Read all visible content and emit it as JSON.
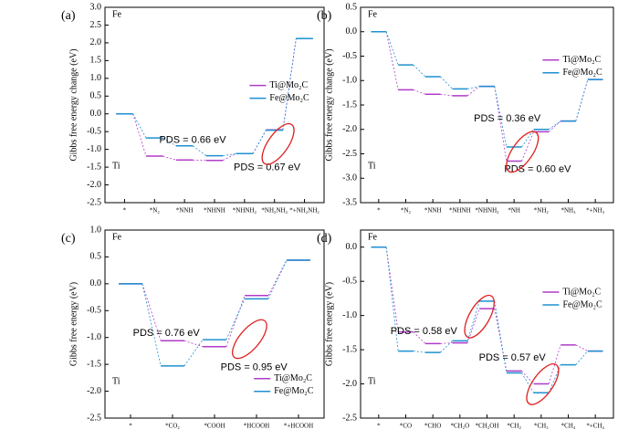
{
  "chart_data": [
    {
      "type": "step",
      "panel_label": "(a)",
      "ylabel": "Gibbs free energy change (eV)",
      "structure_labels": [
        "Fe",
        "Ti"
      ],
      "categories": [
        "*",
        "*N₂",
        "*NNH",
        "*NHNH",
        "*NHNH₂",
        "*NH₂NH₂",
        "*+NH₂NH₂"
      ],
      "series": [
        {
          "name": "Ti@Mo₂C",
          "color": "#b03cc8",
          "values": [
            0,
            -1.19,
            -1.3,
            -1.31,
            -1.12,
            -0.45,
            2.12
          ]
        },
        {
          "name": "Fe@Mo₂C",
          "color": "#1e90d0",
          "values": [
            0,
            -0.68,
            -0.9,
            -1.18,
            -1.12,
            -0.46,
            2.12
          ]
        }
      ],
      "ylim": [
        -2.5,
        3.0
      ],
      "yticks": [
        -2.5,
        {
          "value": -2,
          "label": "-2.0"
        },
        -1.5,
        {
          "value": -1,
          "label": "-1.0"
        },
        -0.5,
        {
          "value": 0,
          "label": "0.0"
        },
        0.5,
        {
          "value": 1,
          "label": "1.0"
        },
        1.5,
        {
          "value": 2,
          "label": "2.0"
        },
        2.5,
        {
          "value": 3,
          "label": "3.0"
        }
      ],
      "annotations": [
        {
          "text": "PDS = 0.66 eV",
          "color": "#1e90d0"
        },
        {
          "text": "PDS = 0.67 eV",
          "color": "#b03cc8"
        }
      ]
    },
    {
      "type": "step",
      "panel_label": "(b)",
      "ylabel": "Gibbs free energy change (eV)",
      "structure_labels": [
        "Fe",
        "Ti"
      ],
      "categories": [
        "*",
        "*N₂",
        "*NNH",
        "*NHNH",
        "*NHNH₂",
        "*NH",
        "*NH₂",
        "*NH₃",
        "*+NH₃"
      ],
      "series": [
        {
          "name": "Ti@Mo₂C",
          "color": "#b03cc8",
          "values": [
            0,
            -1.19,
            -1.28,
            -1.31,
            -1.12,
            -2.65,
            -2.05,
            -1.83,
            -0.98
          ]
        },
        {
          "name": "Fe@Mo₂C",
          "color": "#1e90d0",
          "values": [
            0,
            -0.68,
            -0.92,
            -1.17,
            -1.12,
            -2.36,
            -2.0,
            -1.83,
            -0.98
          ]
        }
      ],
      "ylim": [
        -3.5,
        0.5
      ],
      "yticks": [
        -3.5,
        {
          "value": -3,
          "label": "-3.0"
        },
        -2.5,
        {
          "value": -2,
          "label": "-2.0"
        },
        -1.5,
        {
          "value": -1,
          "label": "-1.0"
        },
        -0.5,
        {
          "value": 0,
          "label": "0.0"
        },
        0.5
      ],
      "annotations": [
        {
          "text": "PDS = 0.36 eV",
          "color": "#1e90d0"
        },
        {
          "text": "PDS = 0.60 eV",
          "color": "#b03cc8"
        }
      ]
    },
    {
      "type": "step",
      "panel_label": "(c)",
      "ylabel": "Gibbs free energy (eV)",
      "structure_labels": [
        "Fe",
        "Ti"
      ],
      "categories": [
        "*",
        "*CO₂",
        "*COOH",
        "*HCOOH",
        "*+HCOOH"
      ],
      "series": [
        {
          "name": "Ti@Mo₂C",
          "color": "#b03cc8",
          "values": [
            0,
            -1.06,
            -1.17,
            -0.22,
            0.44
          ]
        },
        {
          "name": "Fe@Mo₂C",
          "color": "#1e90d0",
          "values": [
            0,
            -1.53,
            -1.04,
            -0.28,
            0.44
          ]
        }
      ],
      "ylim": [
        -2.5,
        1.0
      ],
      "yticks": [
        -2.5,
        {
          "value": -2,
          "label": "-2.0"
        },
        -1.5,
        {
          "value": -1,
          "label": "-1.0"
        },
        -0.5,
        {
          "value": 0,
          "label": "0.0"
        },
        0.5,
        {
          "value": 1,
          "label": "1.0"
        }
      ],
      "annotations": [
        {
          "text": "PDS = 0.76 eV",
          "color": "#1e90d0"
        },
        {
          "text": "PDS = 0.95 eV",
          "color": "#b03cc8"
        }
      ]
    },
    {
      "type": "step",
      "panel_label": "(d)",
      "ylabel": "Gibbs free energy (eV)",
      "structure_labels": [
        "Fe",
        "Ti"
      ],
      "categories": [
        "*",
        "*CO",
        "*CHO",
        "*CH₂O",
        "*CH₂OH",
        "*CH₂",
        "*CH₃",
        "*CH₄",
        "*+CH₄"
      ],
      "series": [
        {
          "name": "Ti@Mo₂C",
          "color": "#b03cc8",
          "values": [
            0,
            -1.24,
            -1.41,
            -1.4,
            -0.9,
            -1.81,
            -2.0,
            -1.43,
            -1.52
          ]
        },
        {
          "name": "Fe@Mo₂C",
          "color": "#1e90d0",
          "values": [
            0,
            -1.52,
            -1.54,
            -1.37,
            -0.79,
            -1.84,
            -2.13,
            -1.72,
            -1.52
          ]
        }
      ],
      "ylim": [
        -2.5,
        0.25
      ],
      "yticks": [
        -2.5,
        {
          "value": -2,
          "label": "-2.0"
        },
        -1.5,
        {
          "value": -1,
          "label": "-1.0"
        },
        -0.5,
        {
          "value": 0,
          "label": "0.0"
        }
      ],
      "annotations": [
        {
          "text": "PDS = 0.58 eV",
          "color": "#1e90d0"
        },
        {
          "text": "PDS = 0.57 eV",
          "color": "#b03cc8"
        }
      ]
    }
  ]
}
